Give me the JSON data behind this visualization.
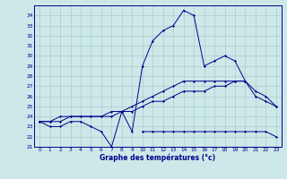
{
  "background_color": "#cce8e8",
  "line_color": "#00008b",
  "grid_color": "#aacccc",
  "hours": [
    0,
    1,
    2,
    3,
    4,
    5,
    6,
    7,
    8,
    9,
    10,
    11,
    12,
    13,
    14,
    15,
    16,
    17,
    18,
    19,
    20,
    21,
    22,
    23
  ],
  "curve_max": [
    23.5,
    23.0,
    23.0,
    23.5,
    23.5,
    23.0,
    22.5,
    21.0,
    24.5,
    22.5,
    29.0,
    31.5,
    32.5,
    33.0,
    34.5,
    34.0,
    29.0,
    29.5,
    30.0,
    29.5,
    27.5,
    null,
    null,
    null
  ],
  "curve_min": [
    null,
    null,
    null,
    null,
    null,
    null,
    null,
    null,
    null,
    null,
    22.5,
    22.5,
    22.5,
    22.5,
    22.5,
    22.5,
    22.5,
    22.5,
    22.5,
    22.5,
    22.5,
    22.5,
    22.5,
    22.0
  ],
  "curve_trend_hi": [
    23.5,
    23.5,
    24.0,
    24.0,
    24.0,
    24.0,
    24.0,
    24.5,
    24.5,
    25.0,
    25.5,
    26.0,
    26.5,
    27.0,
    27.5,
    27.5,
    27.5,
    27.5,
    27.5,
    27.5,
    27.5,
    26.5,
    26.0,
    25.0
  ],
  "curve_trend_lo": [
    23.5,
    23.5,
    23.5,
    24.0,
    24.0,
    24.0,
    24.0,
    24.0,
    24.5,
    24.5,
    25.0,
    25.5,
    25.5,
    26.0,
    26.5,
    26.5,
    26.5,
    27.0,
    27.0,
    27.5,
    27.5,
    26.0,
    25.5,
    25.0
  ],
  "xlabel": "Graphe des températures (°c)",
  "ylim": [
    21,
    35
  ],
  "yticks": [
    21,
    22,
    23,
    24,
    25,
    26,
    27,
    28,
    29,
    30,
    31,
    32,
    33,
    34
  ],
  "marker_size": 1.5,
  "linewidth": 0.7,
  "tick_fontsize": 4.2,
  "xlabel_fontsize": 5.5
}
